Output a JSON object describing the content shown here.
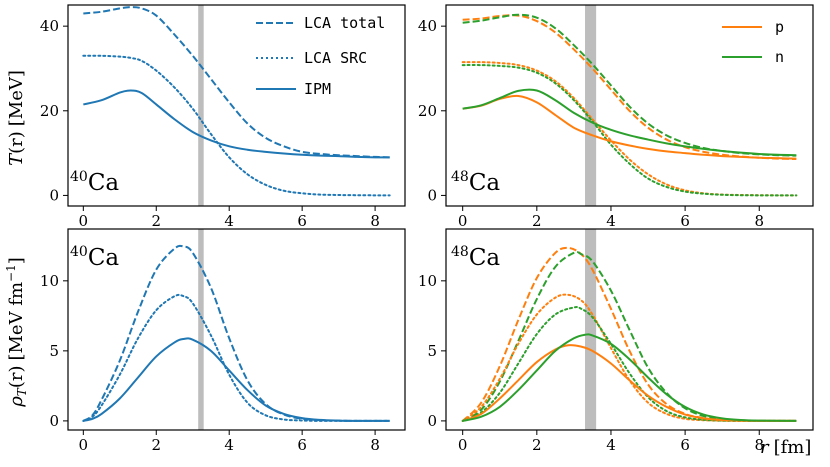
{
  "colors": {
    "ca40": "#1f77b4",
    "p": "#ff7f0e",
    "n": "#2ca02c",
    "band": "#bdbdbd"
  },
  "labels": {
    "top_ylabel_prefix": "T",
    "top_ylabel_var": "(r)",
    "top_ylabel_unit": "[MeV]",
    "bottom_ylabel_prefix": "ρ",
    "bottom_ylabel_sub": "T",
    "bottom_ylabel_var": "(r)",
    "bottom_ylabel_unit": "[MeV fm",
    "bottom_ylabel_exp": "−1",
    "bottom_ylabel_close": "]",
    "xlabel_var": "r",
    "xlabel_unit": "[fm]",
    "ca40_mass": "40",
    "ca48_mass": "48",
    "element": "Ca"
  },
  "legends": {
    "left": [
      "LCA total",
      "LCA SRC",
      "IPM"
    ],
    "right": [
      "p",
      "n"
    ]
  },
  "chart_data": [
    {
      "id": "T_ca40",
      "type": "line",
      "nucleus": "40Ca",
      "ylabel": "T(r) [MeV]",
      "xlim": [
        -0.42,
        8.82
      ],
      "ylim": [
        -2.5,
        45.0
      ],
      "xticks": [
        0,
        2,
        4,
        6,
        8
      ],
      "yticks": [
        0,
        20,
        40
      ],
      "band": [
        3.15,
        3.3
      ],
      "series": [
        {
          "name": "LCA total",
          "color": "ca40",
          "dash": "dashed",
          "x": [
            0,
            0.5,
            1.0,
            1.3,
            1.6,
            2.0,
            2.5,
            3.0,
            3.5,
            4.0,
            4.5,
            5.0,
            5.5,
            6.0,
            6.5,
            7.0,
            7.5,
            8.0,
            8.4
          ],
          "y": [
            43.0,
            43.4,
            44.2,
            44.5,
            44.2,
            42.5,
            38.0,
            33.0,
            27.5,
            22.0,
            17.0,
            13.6,
            11.6,
            10.3,
            9.8,
            9.5,
            9.3,
            9.1,
            9.0
          ]
        },
        {
          "name": "LCA SRC",
          "color": "ca40",
          "dash": "dotted",
          "x": [
            0,
            0.5,
            1.0,
            1.3,
            1.6,
            2.0,
            2.5,
            3.0,
            3.5,
            4.0,
            4.5,
            5.0,
            5.5,
            6.0,
            6.5,
            7.0,
            7.5,
            8.0,
            8.4
          ],
          "y": [
            33.0,
            33.0,
            32.8,
            32.5,
            31.8,
            29.5,
            25.5,
            20.5,
            14.5,
            9.0,
            5.0,
            2.5,
            1.1,
            0.5,
            0.2,
            0.1,
            0.05,
            0.02,
            0.0
          ]
        },
        {
          "name": "IPM",
          "color": "ca40",
          "dash": "solid",
          "x": [
            0,
            0.5,
            1.0,
            1.3,
            1.6,
            2.0,
            2.5,
            3.0,
            3.5,
            4.0,
            4.5,
            5.0,
            5.5,
            6.0,
            6.5,
            7.0,
            7.5,
            8.0,
            8.4
          ],
          "y": [
            21.5,
            22.5,
            24.3,
            24.8,
            24.2,
            21.5,
            18.0,
            15.0,
            13.0,
            11.6,
            10.8,
            10.3,
            9.9,
            9.6,
            9.4,
            9.3,
            9.1,
            9.0,
            9.0
          ]
        }
      ]
    },
    {
      "id": "T_ca48",
      "type": "line",
      "nucleus": "48Ca",
      "xlim": [
        -0.45,
        9.45
      ],
      "ylim": [
        -2.5,
        45.0
      ],
      "xticks": [
        0,
        2,
        4,
        6,
        8
      ],
      "yticks": [
        0,
        20,
        40
      ],
      "band": [
        3.3,
        3.6
      ],
      "series": [
        {
          "name": "p LCA total",
          "color": "p",
          "dash": "dashed",
          "x": [
            0,
            0.5,
            1.0,
            1.5,
            2.0,
            2.5,
            3.0,
            3.5,
            4.0,
            4.5,
            5.0,
            5.5,
            6.0,
            6.5,
            7.0,
            7.5,
            8.0,
            8.5,
            9.0
          ],
          "y": [
            41.5,
            41.8,
            42.4,
            42.5,
            41.2,
            38.5,
            34.5,
            30.0,
            25.0,
            20.0,
            16.0,
            13.2,
            11.4,
            10.3,
            9.6,
            9.2,
            8.9,
            8.7,
            8.6
          ]
        },
        {
          "name": "n LCA total",
          "color": "n",
          "dash": "dashed",
          "x": [
            0,
            0.5,
            1.0,
            1.5,
            2.0,
            2.5,
            3.0,
            3.5,
            4.0,
            4.5,
            5.0,
            5.5,
            6.0,
            6.5,
            7.0,
            7.5,
            8.0,
            8.5,
            9.0
          ],
          "y": [
            40.8,
            41.3,
            42.1,
            42.7,
            42.0,
            39.5,
            35.5,
            31.0,
            26.0,
            21.0,
            17.0,
            14.2,
            12.4,
            11.2,
            10.5,
            10.0,
            9.7,
            9.5,
            9.4
          ]
        },
        {
          "name": "p LCA SRC",
          "color": "p",
          "dash": "dotted",
          "x": [
            0,
            0.5,
            1.0,
            1.5,
            2.0,
            2.5,
            3.0,
            3.5,
            4.0,
            4.5,
            5.0,
            5.5,
            6.0,
            6.5,
            7.0,
            7.5,
            8.0,
            8.5,
            9.0
          ],
          "y": [
            31.5,
            31.5,
            31.3,
            30.8,
            29.5,
            27.0,
            23.0,
            18.0,
            13.0,
            8.5,
            5.0,
            2.6,
            1.2,
            0.5,
            0.2,
            0.1,
            0.05,
            0.02,
            0.0
          ]
        },
        {
          "name": "n LCA SRC",
          "color": "n",
          "dash": "dotted",
          "x": [
            0,
            0.5,
            1.0,
            1.5,
            2.0,
            2.5,
            3.0,
            3.5,
            4.0,
            4.5,
            5.0,
            5.5,
            6.0,
            6.5,
            7.0,
            7.5,
            8.0,
            8.5,
            9.0
          ],
          "y": [
            30.8,
            30.8,
            30.6,
            30.2,
            29.0,
            26.5,
            22.5,
            17.5,
            12.0,
            7.5,
            4.0,
            2.0,
            0.9,
            0.4,
            0.15,
            0.05,
            0.02,
            0.01,
            0.0
          ]
        },
        {
          "name": "p IPM",
          "color": "p",
          "dash": "solid",
          "x": [
            0,
            0.5,
            1.0,
            1.5,
            2.0,
            2.5,
            3.0,
            3.5,
            4.0,
            4.5,
            5.0,
            5.5,
            6.0,
            6.5,
            7.0,
            7.5,
            8.0,
            8.5,
            9.0
          ],
          "y": [
            20.5,
            21.2,
            22.8,
            23.5,
            22.0,
            19.0,
            16.0,
            14.2,
            12.8,
            11.8,
            11.0,
            10.4,
            10.0,
            9.6,
            9.3,
            9.1,
            8.9,
            8.8,
            8.7
          ]
        },
        {
          "name": "n IPM",
          "color": "n",
          "dash": "solid",
          "x": [
            0,
            0.5,
            1.0,
            1.5,
            2.0,
            2.5,
            3.0,
            3.5,
            4.0,
            4.5,
            5.0,
            5.5,
            6.0,
            6.5,
            7.0,
            7.5,
            8.0,
            8.5,
            9.0
          ],
          "y": [
            20.5,
            21.3,
            23.0,
            24.7,
            24.8,
            22.5,
            19.5,
            17.2,
            15.5,
            14.2,
            13.2,
            12.3,
            11.6,
            11.0,
            10.5,
            10.1,
            9.8,
            9.6,
            9.5
          ]
        }
      ]
    },
    {
      "id": "rho_ca40",
      "type": "line",
      "nucleus": "40Ca",
      "ylabel": "ρT(r) [MeV fm−1]",
      "xlim": [
        -0.42,
        8.82
      ],
      "ylim": [
        -0.65,
        13.7
      ],
      "xticks": [
        0,
        2,
        4,
        6,
        8
      ],
      "yticks": [
        0,
        5,
        10
      ],
      "band": [
        3.15,
        3.3
      ],
      "series": [
        {
          "name": "LCA total",
          "color": "ca40",
          "dash": "dashed",
          "x": [
            0,
            0.25,
            0.5,
            1.0,
            1.5,
            2.0,
            2.5,
            2.75,
            3.0,
            3.5,
            4.0,
            4.5,
            5.0,
            5.5,
            6.0,
            6.5,
            7.0,
            7.5,
            8.0,
            8.4
          ],
          "y": [
            0,
            0.4,
            1.5,
            4.3,
            7.8,
            10.8,
            12.3,
            12.45,
            12.0,
            9.5,
            5.9,
            2.9,
            1.2,
            0.45,
            0.15,
            0.05,
            0.02,
            0.0,
            0.0,
            0.0
          ]
        },
        {
          "name": "LCA SRC",
          "color": "ca40",
          "dash": "dotted",
          "x": [
            0,
            0.25,
            0.5,
            1.0,
            1.5,
            2.0,
            2.5,
            2.75,
            3.0,
            3.5,
            4.0,
            4.5,
            5.0,
            5.5,
            6.0,
            6.5,
            7.0,
            7.5,
            8.0,
            8.4
          ],
          "y": [
            0,
            0.3,
            1.1,
            3.3,
            5.9,
            7.9,
            8.9,
            8.9,
            8.4,
            6.1,
            3.3,
            1.3,
            0.4,
            0.1,
            0.03,
            0.0,
            0.0,
            0.0,
            0.0,
            0.0
          ]
        },
        {
          "name": "IPM",
          "color": "ca40",
          "dash": "solid",
          "x": [
            0,
            0.25,
            0.5,
            1.0,
            1.5,
            2.0,
            2.5,
            2.75,
            3.0,
            3.5,
            4.0,
            4.5,
            5.0,
            5.5,
            6.0,
            6.5,
            7.0,
            7.5,
            8.0,
            8.4
          ],
          "y": [
            0,
            0.15,
            0.5,
            1.6,
            3.1,
            4.6,
            5.6,
            5.85,
            5.8,
            5.0,
            3.6,
            2.2,
            1.1,
            0.5,
            0.2,
            0.07,
            0.02,
            0.0,
            0.0,
            0.0
          ]
        }
      ]
    },
    {
      "id": "rho_ca48",
      "type": "line",
      "nucleus": "48Ca",
      "xlim": [
        -0.45,
        9.45
      ],
      "ylim": [
        -0.65,
        13.7
      ],
      "xticks": [
        0,
        2,
        4,
        6,
        8
      ],
      "yticks": [
        0,
        5,
        10
      ],
      "band": [
        3.3,
        3.6
      ],
      "series": [
        {
          "name": "p LCA total",
          "color": "p",
          "dash": "dashed",
          "x": [
            0,
            0.5,
            1.0,
            1.5,
            2.0,
            2.5,
            2.85,
            3.2,
            3.5,
            4.0,
            4.5,
            5.0,
            5.5,
            6.0,
            6.5,
            7.0,
            7.5,
            8.0,
            9.0
          ],
          "y": [
            0,
            1.3,
            3.9,
            7.2,
            10.2,
            12.0,
            12.35,
            11.9,
            10.8,
            8.0,
            5.0,
            2.6,
            1.2,
            0.5,
            0.2,
            0.07,
            0.02,
            0.0,
            0.0
          ]
        },
        {
          "name": "n LCA total",
          "color": "n",
          "dash": "dashed",
          "x": [
            0,
            0.5,
            1.0,
            1.5,
            2.0,
            2.5,
            3.0,
            3.2,
            3.5,
            4.0,
            4.5,
            5.0,
            5.5,
            6.0,
            6.5,
            7.0,
            7.5,
            8.0,
            9.0
          ],
          "y": [
            0,
            0.8,
            2.8,
            5.7,
            8.7,
            11.0,
            12.0,
            11.9,
            11.4,
            9.3,
            6.5,
            3.8,
            2.0,
            0.9,
            0.35,
            0.12,
            0.04,
            0.01,
            0.0
          ]
        },
        {
          "name": "p LCA SRC",
          "color": "p",
          "dash": "dotted",
          "x": [
            0,
            0.5,
            1.0,
            1.5,
            2.0,
            2.5,
            2.85,
            3.2,
            3.5,
            4.0,
            4.5,
            5.0,
            5.5,
            6.0,
            6.5,
            7.0,
            7.5,
            8.0,
            9.0
          ],
          "y": [
            0,
            1.0,
            3.0,
            5.5,
            7.6,
            8.8,
            9.0,
            8.6,
            7.6,
            5.2,
            2.9,
            1.3,
            0.5,
            0.15,
            0.05,
            0.01,
            0.0,
            0.0,
            0.0
          ]
        },
        {
          "name": "n LCA SRC",
          "color": "n",
          "dash": "dotted",
          "x": [
            0,
            0.5,
            1.0,
            1.5,
            2.0,
            2.5,
            3.0,
            3.2,
            3.5,
            4.0,
            4.5,
            5.0,
            5.5,
            6.0,
            6.5,
            7.0,
            7.5,
            8.0,
            9.0
          ],
          "y": [
            0,
            0.6,
            2.0,
            4.1,
            6.2,
            7.6,
            8.1,
            8.0,
            7.4,
            5.5,
            3.4,
            1.7,
            0.7,
            0.25,
            0.08,
            0.02,
            0.0,
            0.0,
            0.0
          ]
        },
        {
          "name": "p IPM",
          "color": "p",
          "dash": "solid",
          "x": [
            0,
            0.5,
            1.0,
            1.5,
            2.0,
            2.5,
            2.85,
            3.2,
            3.5,
            4.0,
            4.5,
            5.0,
            5.5,
            6.0,
            6.5,
            7.0,
            7.5,
            8.0,
            9.0
          ],
          "y": [
            0,
            0.5,
            1.6,
            2.9,
            4.2,
            5.1,
            5.4,
            5.3,
            5.0,
            4.1,
            2.9,
            1.8,
            1.0,
            0.45,
            0.18,
            0.06,
            0.02,
            0.0,
            0.0
          ]
        },
        {
          "name": "n IPM",
          "color": "n",
          "dash": "solid",
          "x": [
            0,
            0.5,
            1.0,
            1.5,
            2.0,
            2.5,
            3.0,
            3.3,
            3.5,
            4.0,
            4.5,
            5.0,
            5.5,
            6.0,
            6.5,
            7.0,
            7.5,
            8.0,
            9.0
          ],
          "y": [
            0,
            0.3,
            1.0,
            2.2,
            3.6,
            5.0,
            5.9,
            6.15,
            6.1,
            5.5,
            4.4,
            3.1,
            1.9,
            1.0,
            0.45,
            0.18,
            0.06,
            0.02,
            0.0
          ]
        }
      ]
    }
  ]
}
